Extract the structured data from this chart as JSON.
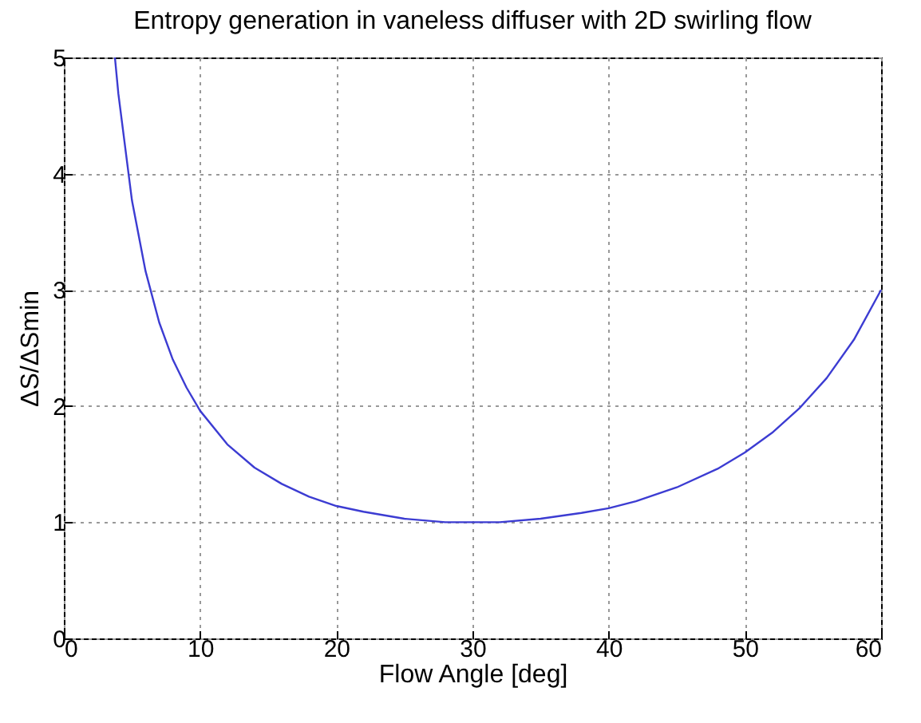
{
  "chart_data": {
    "type": "line",
    "title": "Entropy generation in vaneless diffuser with 2D swirling flow",
    "xlabel": "Flow Angle [deg]",
    "ylabel": "ΔS/ΔSmin",
    "x": [
      3.75,
      4,
      5,
      6,
      7,
      8,
      9,
      10,
      12,
      14,
      16,
      18,
      20,
      22,
      25,
      28,
      30,
      32,
      35,
      38,
      40,
      42,
      45,
      48,
      50,
      52,
      54,
      56,
      58,
      60
    ],
    "series": [
      {
        "color": "#3c3cd2",
        "values": [
          5.0,
          4.69,
          3.77,
          3.16,
          2.72,
          2.4,
          2.16,
          1.96,
          1.67,
          1.47,
          1.33,
          1.22,
          1.14,
          1.09,
          1.03,
          1.0,
          1.0,
          1.0,
          1.03,
          1.08,
          1.12,
          1.18,
          1.3,
          1.46,
          1.6,
          1.77,
          1.98,
          2.24,
          2.57,
          3.0
        ]
      }
    ],
    "xlim": [
      0,
      60
    ],
    "ylim": [
      0,
      5
    ],
    "xticks": [
      0,
      10,
      20,
      30,
      40,
      50,
      60
    ],
    "yticks": [
      0,
      1,
      2,
      3,
      4,
      5
    ],
    "grid": true,
    "marker": "none",
    "line_style": "solid"
  }
}
